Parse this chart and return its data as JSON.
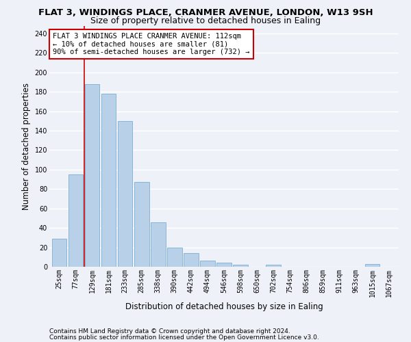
{
  "title1": "FLAT 3, WINDINGS PLACE, CRANMER AVENUE, LONDON, W13 9SH",
  "title2": "Size of property relative to detached houses in Ealing",
  "xlabel": "Distribution of detached houses by size in Ealing",
  "ylabel": "Number of detached properties",
  "categories": [
    "25sqm",
    "77sqm",
    "129sqm",
    "181sqm",
    "233sqm",
    "285sqm",
    "338sqm",
    "390sqm",
    "442sqm",
    "494sqm",
    "546sqm",
    "598sqm",
    "650sqm",
    "702sqm",
    "754sqm",
    "806sqm",
    "859sqm",
    "911sqm",
    "963sqm",
    "1015sqm",
    "1067sqm"
  ],
  "values": [
    29,
    95,
    188,
    178,
    150,
    87,
    46,
    20,
    14,
    6,
    4,
    2,
    0,
    2,
    0,
    0,
    0,
    0,
    0,
    3,
    0
  ],
  "bar_color": "#b8d0e8",
  "bar_edge_color": "#7aadd4",
  "vline_color": "#cc0000",
  "vline_x_index": 1.5,
  "annotation_text": "FLAT 3 WINDINGS PLACE CRANMER AVENUE: 112sqm\n← 10% of detached houses are smaller (81)\n90% of semi-detached houses are larger (732) →",
  "annotation_box_color": "#ffffff",
  "annotation_box_edge": "#cc0000",
  "ylim": [
    0,
    248
  ],
  "yticks": [
    0,
    20,
    40,
    60,
    80,
    100,
    120,
    140,
    160,
    180,
    200,
    220,
    240
  ],
  "footer1": "Contains HM Land Registry data © Crown copyright and database right 2024.",
  "footer2": "Contains public sector information licensed under the Open Government Licence v3.0.",
  "background_color": "#eef2f8",
  "grid_color": "#ffffff",
  "title1_fontsize": 9.5,
  "title2_fontsize": 9,
  "axis_label_fontsize": 8.5,
  "tick_fontsize": 7,
  "annotation_fontsize": 7.5,
  "footer_fontsize": 6.5
}
